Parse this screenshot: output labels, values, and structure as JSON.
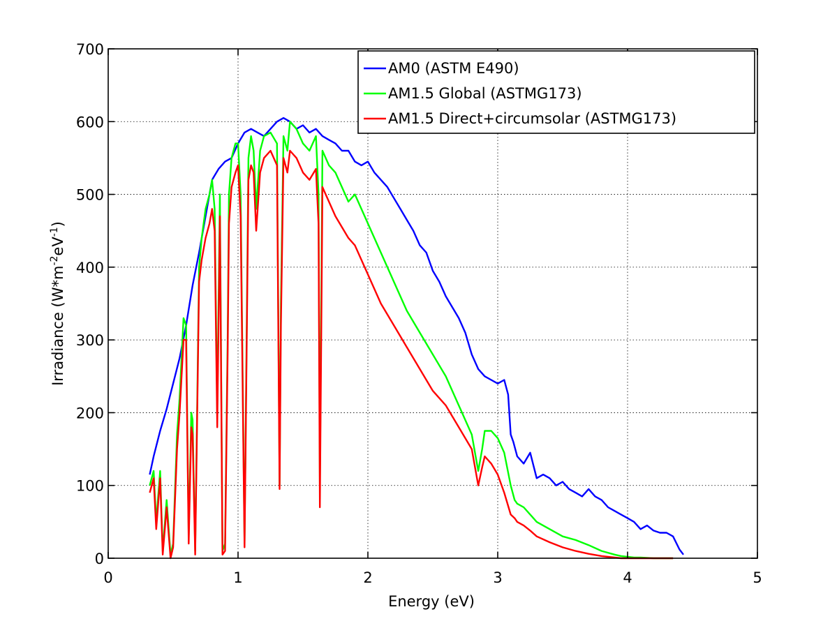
{
  "chart_data": {
    "type": "line",
    "title": "",
    "xlabel": "Energy (eV)",
    "ylabel": {
      "base": "Irradiance (W*m",
      "sup1": "-2",
      "mid": "eV",
      "sup2": "-1",
      "end": ")"
    },
    "xlim": [
      0,
      5
    ],
    "ylim": [
      0,
      700
    ],
    "xticks": [
      0,
      1,
      2,
      3,
      4,
      5
    ],
    "yticks": [
      0,
      100,
      200,
      300,
      400,
      500,
      600,
      700
    ],
    "grid": true,
    "legend_position": "top-right",
    "series": [
      {
        "name": "AM0 (ASTM E490)",
        "color": "#0000ff",
        "x": [
          0.32,
          0.35,
          0.4,
          0.45,
          0.5,
          0.55,
          0.6,
          0.65,
          0.7,
          0.75,
          0.8,
          0.85,
          0.9,
          0.95,
          1.0,
          1.05,
          1.1,
          1.15,
          1.2,
          1.25,
          1.3,
          1.35,
          1.4,
          1.45,
          1.5,
          1.55,
          1.6,
          1.65,
          1.7,
          1.75,
          1.8,
          1.85,
          1.9,
          1.95,
          2.0,
          2.05,
          2.1,
          2.15,
          2.2,
          2.25,
          2.3,
          2.35,
          2.4,
          2.45,
          2.5,
          2.55,
          2.6,
          2.65,
          2.7,
          2.75,
          2.8,
          2.85,
          2.9,
          2.95,
          3.0,
          3.05,
          3.08,
          3.1,
          3.12,
          3.15,
          3.2,
          3.25,
          3.3,
          3.35,
          3.4,
          3.45,
          3.5,
          3.55,
          3.6,
          3.65,
          3.7,
          3.75,
          3.8,
          3.85,
          3.9,
          3.95,
          4.0,
          4.05,
          4.1,
          4.15,
          4.2,
          4.25,
          4.3,
          4.35,
          4.4,
          4.43
        ],
        "y": [
          115,
          140,
          175,
          205,
          240,
          275,
          320,
          375,
          420,
          470,
          520,
          535,
          545,
          550,
          570,
          585,
          590,
          585,
          580,
          590,
          600,
          605,
          600,
          590,
          595,
          585,
          590,
          580,
          575,
          570,
          560,
          560,
          545,
          540,
          545,
          530,
          520,
          510,
          495,
          480,
          465,
          450,
          430,
          420,
          395,
          380,
          360,
          345,
          330,
          310,
          280,
          260,
          250,
          245,
          240,
          245,
          225,
          170,
          160,
          140,
          130,
          145,
          110,
          115,
          110,
          100,
          105,
          95,
          90,
          85,
          95,
          85,
          80,
          70,
          65,
          60,
          55,
          50,
          40,
          45,
          38,
          35,
          35,
          30,
          12,
          5
        ]
      },
      {
        "name": "AM1.5 Global (ASTMG173)",
        "color": "#00ff00",
        "x": [
          0.32,
          0.35,
          0.37,
          0.4,
          0.42,
          0.45,
          0.48,
          0.5,
          0.53,
          0.55,
          0.58,
          0.6,
          0.62,
          0.64,
          0.65,
          0.67,
          0.7,
          0.72,
          0.75,
          0.78,
          0.8,
          0.82,
          0.84,
          0.86,
          0.88,
          0.9,
          0.92,
          0.93,
          0.95,
          0.98,
          1.0,
          1.02,
          1.05,
          1.08,
          1.1,
          1.12,
          1.14,
          1.17,
          1.2,
          1.25,
          1.3,
          1.32,
          1.33,
          1.35,
          1.38,
          1.4,
          1.45,
          1.5,
          1.55,
          1.6,
          1.62,
          1.63,
          1.65,
          1.7,
          1.75,
          1.8,
          1.85,
          1.9,
          1.95,
          2.0,
          2.1,
          2.2,
          2.3,
          2.4,
          2.5,
          2.6,
          2.7,
          2.8,
          2.85,
          2.88,
          2.9,
          2.95,
          3.0,
          3.05,
          3.1,
          3.13,
          3.15,
          3.2,
          3.25,
          3.3,
          3.4,
          3.5,
          3.6,
          3.7,
          3.8,
          3.9,
          3.95,
          4.0,
          4.05,
          4.1,
          4.2,
          4.3,
          4.35
        ],
        "y": [
          100,
          120,
          50,
          120,
          10,
          80,
          5,
          20,
          170,
          220,
          330,
          320,
          30,
          200,
          190,
          10,
          400,
          440,
          480,
          500,
          520,
          480,
          200,
          500,
          10,
          20,
          300,
          500,
          550,
          570,
          570,
          500,
          20,
          550,
          580,
          560,
          480,
          560,
          580,
          585,
          570,
          100,
          350,
          580,
          560,
          600,
          590,
          570,
          560,
          580,
          500,
          100,
          560,
          540,
          530,
          510,
          490,
          500,
          480,
          460,
          420,
          380,
          340,
          310,
          280,
          250,
          210,
          170,
          120,
          150,
          175,
          175,
          165,
          145,
          100,
          80,
          75,
          70,
          60,
          50,
          40,
          30,
          25,
          18,
          10,
          5,
          3,
          2,
          1,
          1,
          0,
          0,
          0
        ]
      },
      {
        "name": "AM1.5 Direct+circumsolar (ASTMG173)",
        "color": "#ff0000",
        "x": [
          0.32,
          0.35,
          0.37,
          0.4,
          0.42,
          0.45,
          0.48,
          0.5,
          0.53,
          0.55,
          0.58,
          0.6,
          0.62,
          0.64,
          0.65,
          0.67,
          0.7,
          0.72,
          0.75,
          0.78,
          0.8,
          0.82,
          0.84,
          0.86,
          0.88,
          0.9,
          0.92,
          0.93,
          0.95,
          0.98,
          1.0,
          1.02,
          1.05,
          1.08,
          1.1,
          1.12,
          1.14,
          1.17,
          1.2,
          1.25,
          1.3,
          1.32,
          1.33,
          1.35,
          1.38,
          1.4,
          1.45,
          1.5,
          1.55,
          1.6,
          1.62,
          1.63,
          1.65,
          1.7,
          1.75,
          1.8,
          1.85,
          1.9,
          1.95,
          2.0,
          2.1,
          2.2,
          2.3,
          2.4,
          2.5,
          2.6,
          2.7,
          2.8,
          2.85,
          2.88,
          2.9,
          2.95,
          3.0,
          3.05,
          3.1,
          3.13,
          3.15,
          3.2,
          3.25,
          3.3,
          3.4,
          3.5,
          3.6,
          3.7,
          3.8,
          3.9,
          3.95,
          4.0,
          4.05,
          4.1,
          4.2,
          4.3,
          4.35
        ],
        "y": [
          90,
          110,
          40,
          110,
          5,
          70,
          0,
          15,
          150,
          200,
          300,
          300,
          20,
          180,
          170,
          5,
          380,
          410,
          440,
          460,
          480,
          450,
          180,
          470,
          5,
          10,
          280,
          460,
          510,
          530,
          540,
          470,
          15,
          520,
          540,
          530,
          450,
          530,
          550,
          560,
          540,
          95,
          320,
          550,
          530,
          560,
          550,
          530,
          520,
          535,
          460,
          70,
          510,
          490,
          470,
          455,
          440,
          430,
          410,
          390,
          350,
          320,
          290,
          260,
          230,
          210,
          180,
          150,
          100,
          125,
          140,
          130,
          115,
          90,
          60,
          55,
          50,
          45,
          38,
          30,
          22,
          15,
          10,
          6,
          3,
          1,
          0,
          0,
          0,
          0,
          0,
          0,
          0
        ]
      }
    ]
  }
}
